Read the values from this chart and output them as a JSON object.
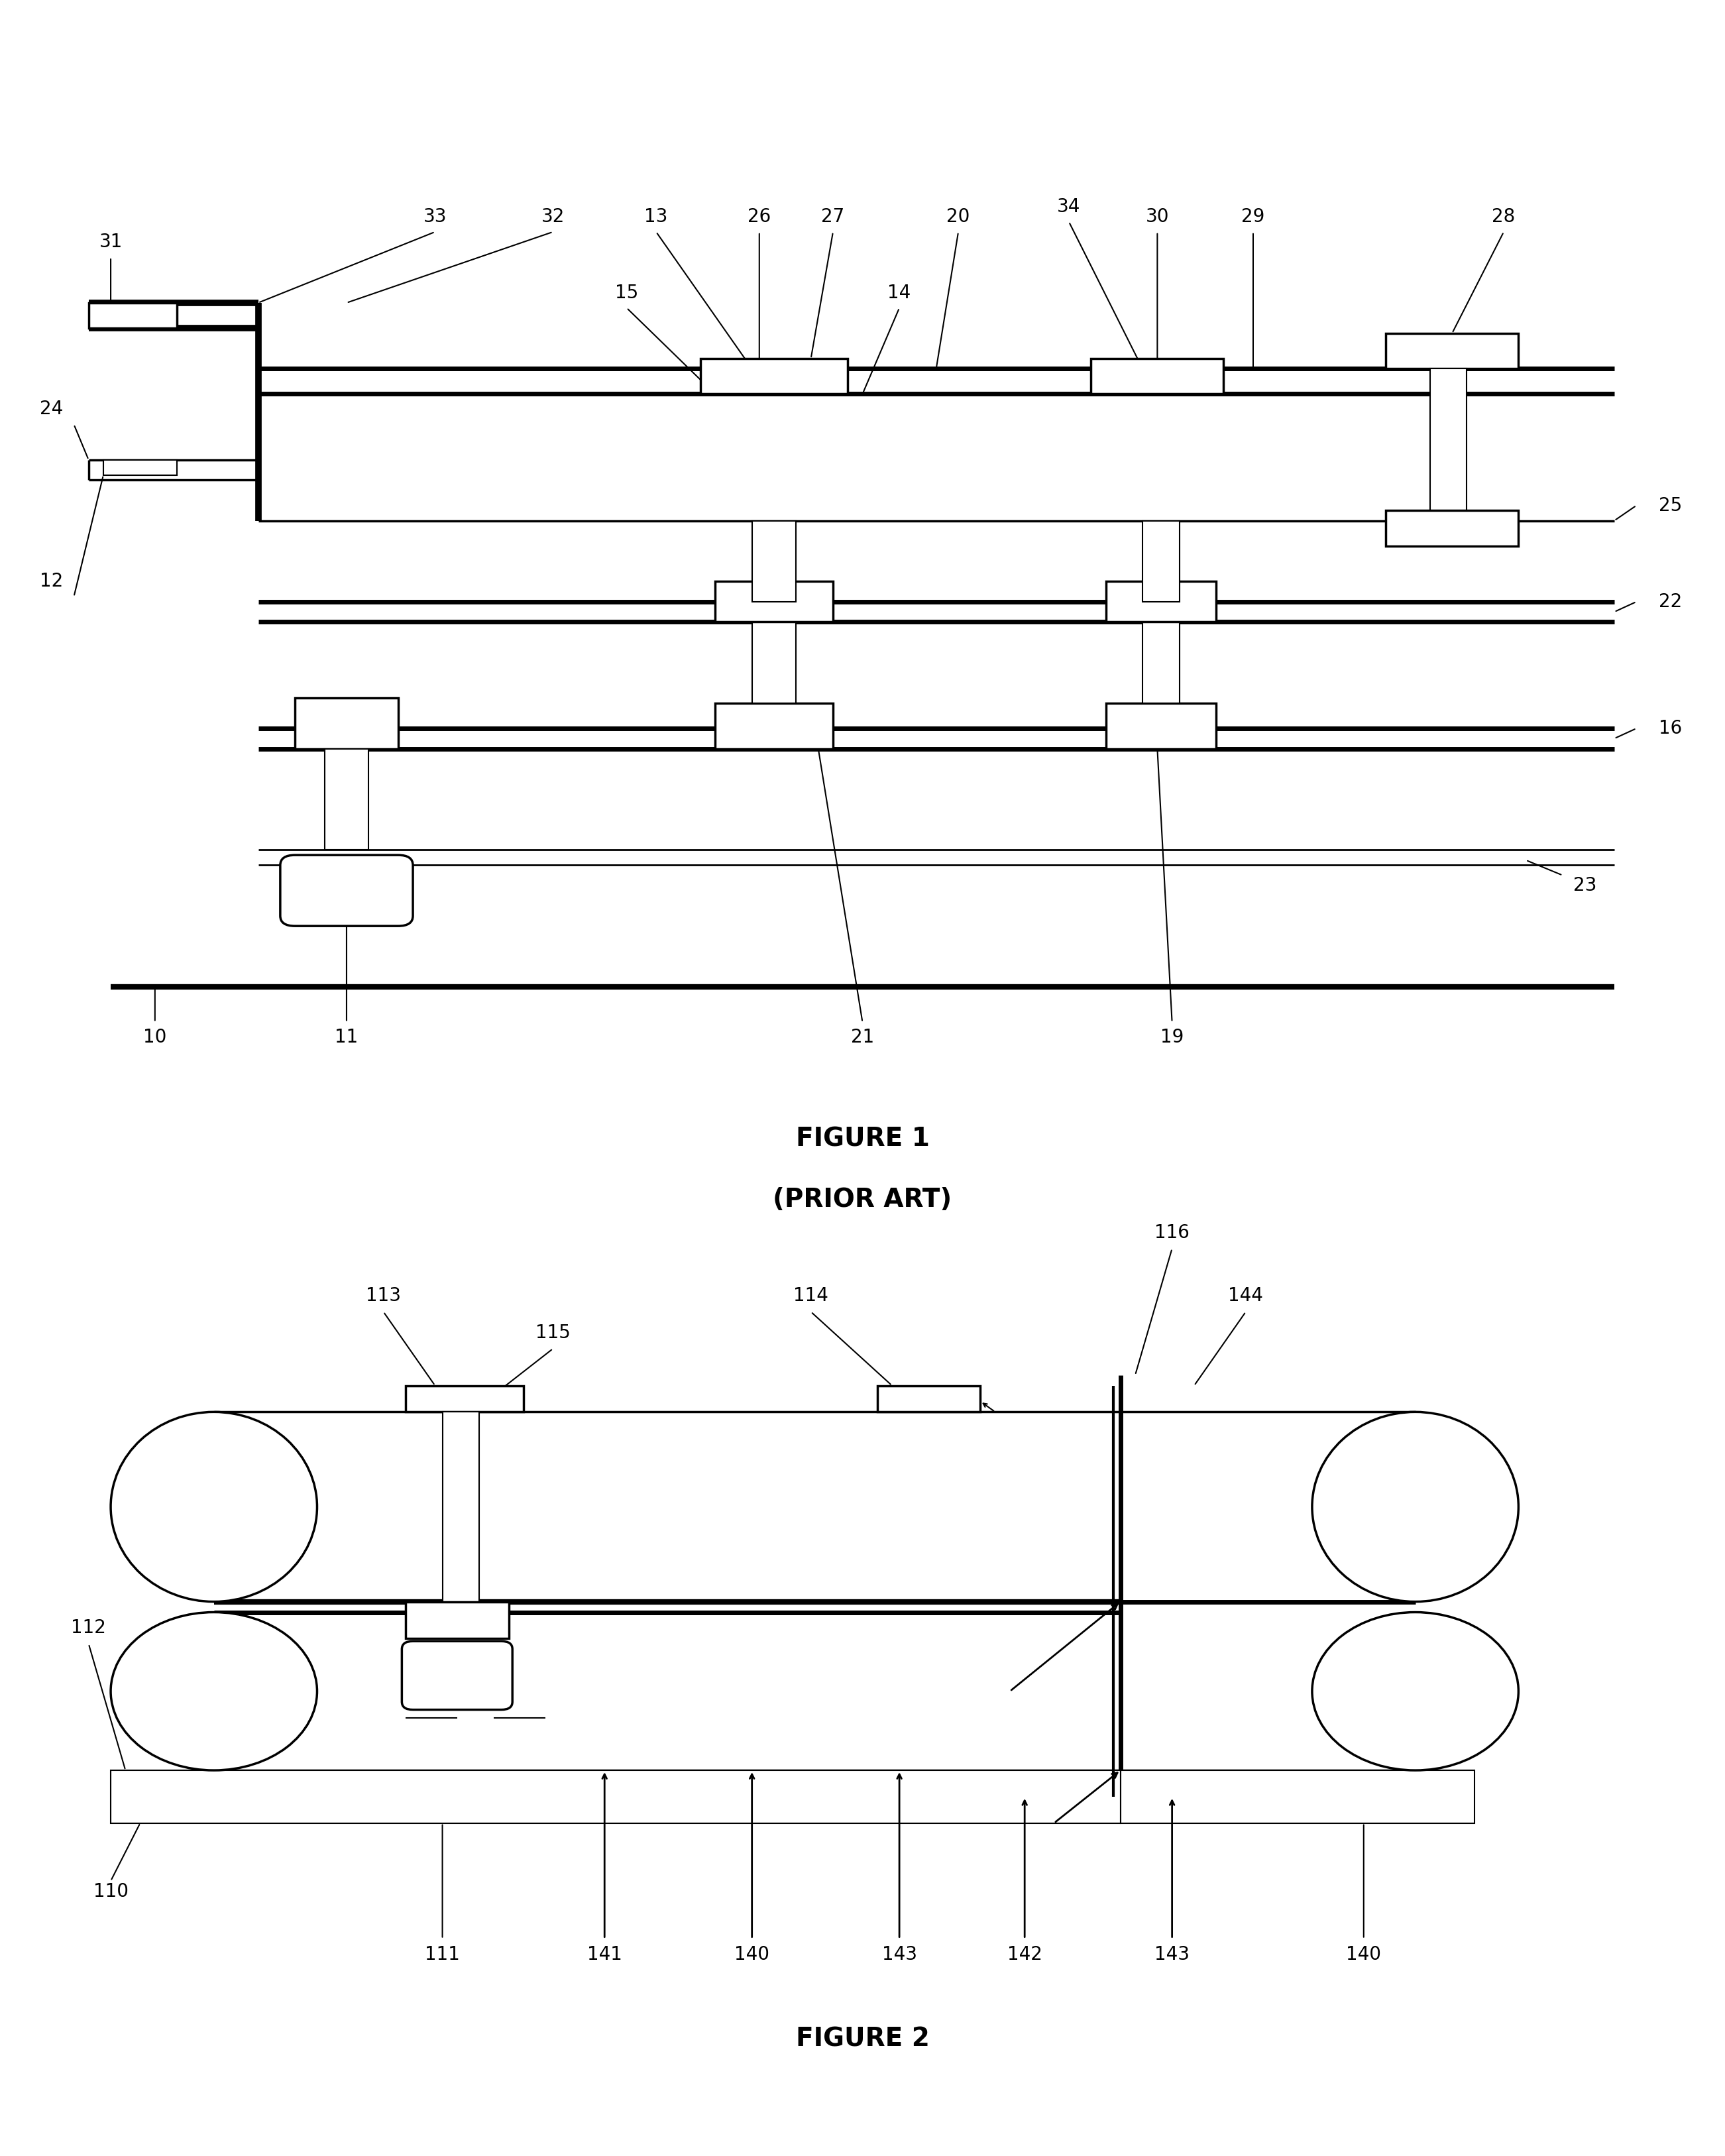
{
  "fig_width": 26.03,
  "fig_height": 32.53,
  "bg_color": "#ffffff",
  "figure1_title": "FIGURE 1",
  "figure1_subtitle": "(PRIOR ART)",
  "figure2_title": "FIGURE 2",
  "title_fontsize": 28,
  "label_fontsize": 20,
  "lw_thick": 5.0,
  "lw_med": 2.5,
  "lw_thin": 1.5
}
